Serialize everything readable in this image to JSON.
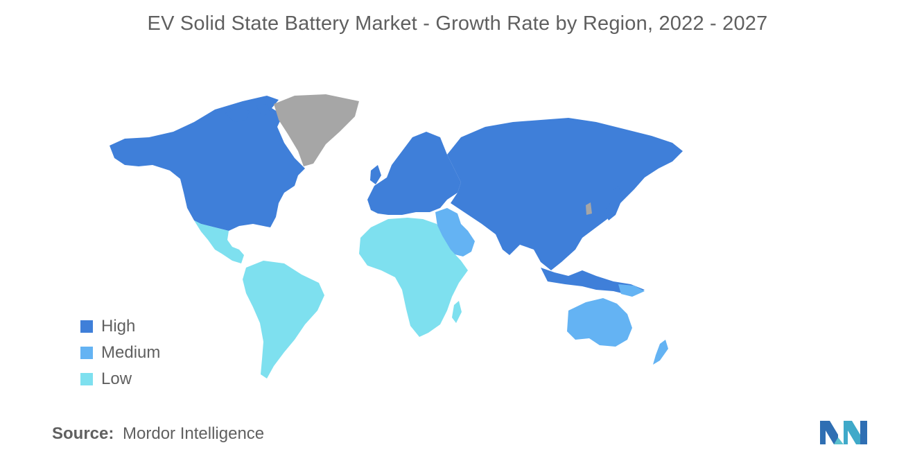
{
  "title": "EV Solid State Battery Market - Growth Rate by Region, 2022 - 2027",
  "legend": {
    "items": [
      {
        "label": "High",
        "color": "#3f7fd9"
      },
      {
        "label": "Medium",
        "color": "#64b3f3"
      },
      {
        "label": "Low",
        "color": "#7ee0ef"
      }
    ]
  },
  "no_data_color": "#a6a6a6",
  "regions": [
    {
      "name": "North America",
      "level": "High"
    },
    {
      "name": "Europe",
      "level": "High"
    },
    {
      "name": "Russia and Central Asia",
      "level": "High"
    },
    {
      "name": "Asia-Pacific",
      "level": "High"
    },
    {
      "name": "Middle East",
      "level": "Medium"
    },
    {
      "name": "Oceania",
      "level": "Medium"
    },
    {
      "name": "Latin America",
      "level": "Low"
    },
    {
      "name": "Africa",
      "level": "Low"
    },
    {
      "name": "Greenland",
      "level": "No data"
    }
  ],
  "source": {
    "key": "Source:",
    "value": "Mordor Intelligence"
  },
  "logo_icon": "mordor-intelligence-logo"
}
